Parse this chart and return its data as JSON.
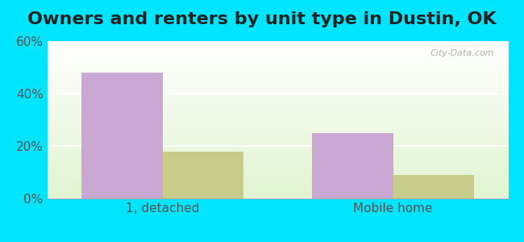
{
  "title": "Owners and renters by unit type in Dustin, OK",
  "categories": [
    "1, detached",
    "Mobile home"
  ],
  "owner_values": [
    48,
    25
  ],
  "renter_values": [
    18,
    9
  ],
  "owner_color": "#c9a8d4",
  "renter_color": "#c8cc8a",
  "ylim": [
    0,
    60
  ],
  "yticks": [
    0,
    20,
    40,
    60
  ],
  "ytick_labels": [
    "0%",
    "20%",
    "40%",
    "60%"
  ],
  "bar_width": 0.35,
  "background_outer": "#00e5ff",
  "watermark": "City-Data.com",
  "title_fontsize": 16,
  "axis_fontsize": 11
}
